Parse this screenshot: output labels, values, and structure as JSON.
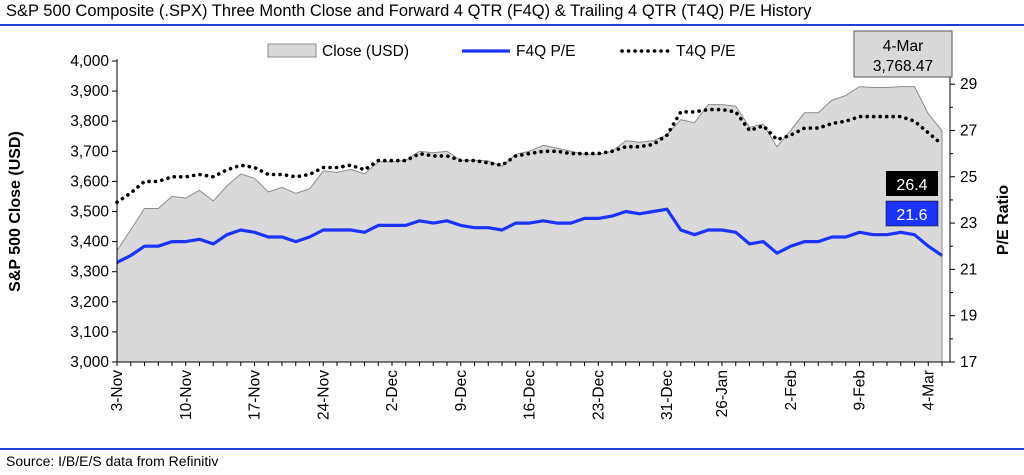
{
  "title": "S&P 500 Composite (.SPX) Three Month Close and Forward 4 QTR (F4Q) & Trailing 4 QTR (T4Q) P/E History",
  "source": "Source: I/B/E/S data from Refinitiv",
  "colors": {
    "rule": "#1f3fd0",
    "area_fill": "#d9d9d9",
    "area_stroke": "#8c8c8c",
    "f4q_line": "#1a33ff",
    "t4q_line": "#000000",
    "callout_t4q_bg": "#000000",
    "callout_f4q_bg": "#1a33ff"
  },
  "chart_data": {
    "type": "area",
    "x_tick_labels": [
      "3-Nov",
      "10-Nov",
      "17-Nov",
      "24-Nov",
      "2-Dec",
      "9-Dec",
      "16-Dec",
      "23-Dec",
      "31-Dec",
      "26-Jan",
      "2-Feb",
      "9-Feb",
      "4-Mar"
    ],
    "x_tick_positions": [
      0,
      5,
      10,
      15,
      20,
      25,
      30,
      35,
      40,
      44,
      49,
      54,
      59
    ],
    "ylabel_left": "S&P 500 Close (USD)",
    "ylabel_right": "P/E Ratio",
    "ylim_left": [
      3000,
      4000
    ],
    "yticks_left": [
      "3,000",
      "3,100",
      "3,200",
      "3,300",
      "3,400",
      "3,500",
      "3,600",
      "3,700",
      "3,800",
      "3,900",
      "4,000"
    ],
    "ylim_right": [
      17,
      30
    ],
    "yticks_right": [
      "17",
      "19",
      "21",
      "23",
      "25",
      "27",
      "29"
    ],
    "legend": [
      "Close (USD)",
      "F4Q P/E",
      "T4Q P/E"
    ],
    "legend_position": "top",
    "grid": false,
    "series": [
      {
        "name": "Close (USD)",
        "type": "area",
        "axis": "left",
        "values": [
          3370,
          3440,
          3510,
          3510,
          3550,
          3545,
          3570,
          3535,
          3585,
          3625,
          3610,
          3565,
          3580,
          3560,
          3575,
          3635,
          3630,
          3640,
          3625,
          3665,
          3665,
          3670,
          3700,
          3695,
          3700,
          3670,
          3670,
          3668,
          3650,
          3690,
          3700,
          3720,
          3710,
          3700,
          3690,
          3690,
          3700,
          3735,
          3730,
          3735,
          3755,
          3805,
          3795,
          3855,
          3855,
          3850,
          3780,
          3790,
          3715,
          3770,
          3828,
          3828,
          3870,
          3885,
          3915,
          3912,
          3912,
          3915,
          3915,
          3825,
          3768.47
        ]
      },
      {
        "name": "F4Q P/E",
        "type": "line",
        "axis": "right",
        "values": [
          21.3,
          21.6,
          22.0,
          22.0,
          22.2,
          22.2,
          22.3,
          22.1,
          22.5,
          22.7,
          22.6,
          22.4,
          22.4,
          22.2,
          22.4,
          22.7,
          22.7,
          22.7,
          22.6,
          22.9,
          22.9,
          22.9,
          23.1,
          23.0,
          23.1,
          22.9,
          22.8,
          22.8,
          22.7,
          23.0,
          23.0,
          23.1,
          23.0,
          23.0,
          23.2,
          23.2,
          23.3,
          23.5,
          23.4,
          23.5,
          23.6,
          22.7,
          22.5,
          22.7,
          22.7,
          22.6,
          22.1,
          22.2,
          21.7,
          22.0,
          22.2,
          22.2,
          22.4,
          22.4,
          22.6,
          22.5,
          22.5,
          22.6,
          22.5,
          22.0,
          21.6
        ]
      },
      {
        "name": "T4Q P/E",
        "type": "line",
        "axis": "right",
        "values": [
          23.9,
          24.3,
          24.8,
          24.8,
          25.0,
          25.0,
          25.1,
          25.0,
          25.3,
          25.5,
          25.4,
          25.1,
          25.1,
          25.0,
          25.1,
          25.4,
          25.4,
          25.5,
          25.3,
          25.7,
          25.7,
          25.7,
          26.0,
          25.9,
          25.9,
          25.7,
          25.7,
          25.6,
          25.5,
          25.9,
          26.0,
          26.1,
          26.1,
          26.0,
          26.0,
          26.0,
          26.1,
          26.3,
          26.3,
          26.4,
          26.8,
          27.8,
          27.8,
          27.9,
          27.9,
          27.8,
          27.0,
          27.2,
          26.6,
          26.8,
          27.1,
          27.1,
          27.3,
          27.4,
          27.6,
          27.6,
          27.6,
          27.6,
          27.4,
          26.9,
          26.4
        ]
      }
    ],
    "annotations": {
      "date_callout": {
        "date": "4-Mar",
        "value": "3,768.47"
      },
      "t4q_last": "26.4",
      "f4q_last": "21.6"
    }
  }
}
